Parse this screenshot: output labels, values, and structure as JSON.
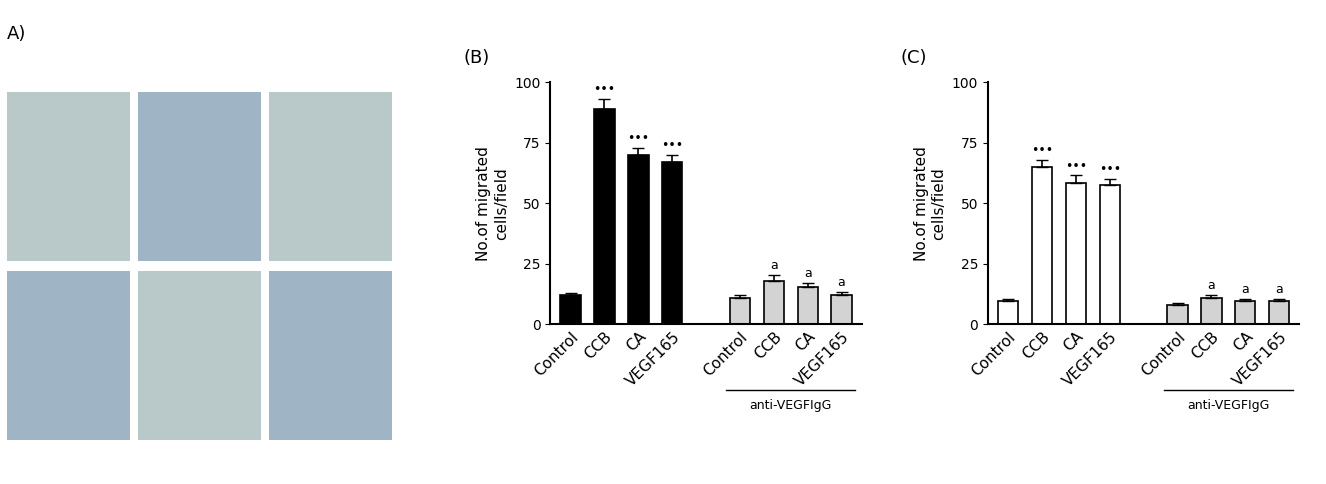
{
  "image_panel": {
    "label": "A)"
  },
  "chart_data": [
    {
      "type": "bar",
      "title": "(B)",
      "y_label": "No.of migrated\ncells/field",
      "categories": [
        "Control",
        "CCB",
        "CA",
        "VEGF165",
        null,
        "Control",
        "CCB",
        "CA",
        "VEGF165"
      ],
      "values": [
        12,
        89,
        70,
        67,
        null,
        11,
        18,
        15.5,
        12
      ],
      "errors": [
        1,
        4,
        3,
        3,
        null,
        1,
        2.5,
        1.5,
        1.5
      ],
      "colors": [
        "#000000",
        "#000000",
        "#000000",
        "#000000",
        null,
        "#d3d3d3",
        "#d3d3d3",
        "#d3d3d3",
        "#d3d3d3"
      ],
      "annotations": [
        null,
        "•••",
        "•••",
        "•••",
        null,
        null,
        "a",
        "a",
        "a"
      ],
      "group_label": "anti-VEGFIgG",
      "ylim": [
        0,
        100
      ],
      "yticks": [
        0,
        25,
        50,
        75,
        100
      ]
    },
    {
      "type": "bar",
      "title": "(C)",
      "y_label": "No.of migrated\ncells/field",
      "categories": [
        "Control",
        "CCB",
        "CA",
        "VEGF165",
        null,
        "Control",
        "CCB",
        "CA",
        "VEGF165"
      ],
      "values": [
        9.5,
        65,
        58.5,
        57.5,
        null,
        8,
        11,
        9.5,
        9.5
      ],
      "errors": [
        1,
        3,
        3,
        2.5,
        null,
        0.8,
        1,
        1,
        1
      ],
      "colors": [
        "#ffffff",
        "#ffffff",
        "#ffffff",
        "#ffffff",
        null,
        "#d3d3d3",
        "#d3d3d3",
        "#d3d3d3",
        "#d3d3d3"
      ],
      "annotations": [
        null,
        "•••",
        "•••",
        "•••",
        null,
        null,
        "a",
        "a",
        "a"
      ],
      "group_label": "anti-VEGFIgG",
      "ylim": [
        0,
        100
      ],
      "yticks": [
        0,
        25,
        50,
        75,
        100
      ]
    }
  ]
}
